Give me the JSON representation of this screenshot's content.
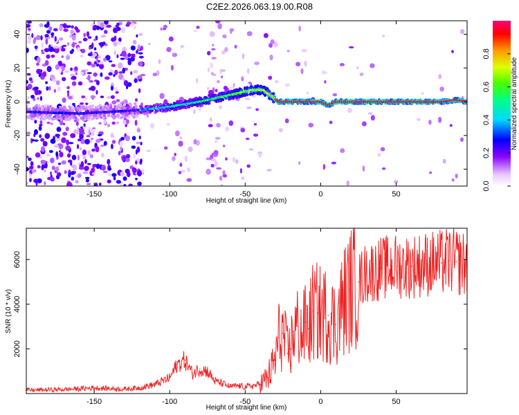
{
  "title": "C2E2.2026.063.19.00.R08",
  "chart_data": [
    {
      "type": "heatmap",
      "name": "spectrogram",
      "xlabel": "Height of straight line (km)",
      "ylabel": "Frequency (Hz)",
      "xlim": [
        -195,
        97
      ],
      "ylim": [
        -50,
        48
      ],
      "xticks": [
        -150,
        -100,
        -50,
        0,
        50
      ],
      "yticks": [
        -40,
        -20,
        0,
        20,
        40
      ],
      "ridge": {
        "x": [
          -195,
          -160,
          -140,
          -120,
          -100,
          -80,
          -60,
          -45,
          -38,
          -32,
          -28,
          -20,
          0,
          5,
          10,
          20,
          50,
          80,
          90,
          97
        ],
        "y": [
          -6,
          -7,
          -6,
          -5,
          -3,
          0,
          4,
          7,
          7,
          3,
          0,
          0,
          0,
          -2,
          0,
          0,
          0,
          0,
          1,
          0
        ]
      },
      "colorbar": {
        "label": "Normalized spectral amplitude",
        "range": [
          0.0,
          1.0
        ],
        "ticks": [
          "0.0",
          "0.2",
          "0.4",
          "0.6",
          "0.8"
        ],
        "tick_values": [
          0.0,
          0.2,
          0.4,
          0.6,
          0.8
        ]
      }
    },
    {
      "type": "line",
      "name": "snr",
      "xlabel": "Height of straight line (km)",
      "ylabel": "SNR (10 * v/v)",
      "xlim": [
        -195,
        97
      ],
      "ylim": [
        0,
        7400
      ],
      "xticks": [
        -150,
        -100,
        -50,
        0,
        50
      ],
      "yticks": [
        2000,
        4000,
        6000
      ],
      "color": "#ee2222",
      "series": [
        {
          "name": "SNR",
          "x": [
            -195,
            -170,
            -150,
            -130,
            -120,
            -110,
            -100,
            -95,
            -90,
            -85,
            -80,
            -75,
            -70,
            -65,
            -60,
            -55,
            -50,
            -45,
            -40,
            -35,
            -30,
            -28,
            -25,
            -22,
            -20,
            -18,
            -15,
            -12,
            -10,
            -8,
            -5,
            -2,
            0,
            5,
            10,
            15,
            20,
            25,
            30,
            40,
            50,
            60,
            70,
            80,
            85,
            90,
            95,
            97
          ],
          "y": [
            150,
            180,
            250,
            200,
            260,
            400,
            700,
            1300,
            1500,
            900,
            1100,
            1000,
            550,
            450,
            300,
            350,
            300,
            350,
            400,
            700,
            1500,
            2500,
            2700,
            1800,
            2000,
            2800,
            3000,
            2600,
            3200,
            2900,
            3700,
            3600,
            3600,
            3500,
            3100,
            4100,
            4700,
            5000,
            5400,
            5600,
            5700,
            5700,
            5800,
            5850,
            5950,
            5900,
            5800,
            5700
          ]
        }
      ]
    }
  ]
}
